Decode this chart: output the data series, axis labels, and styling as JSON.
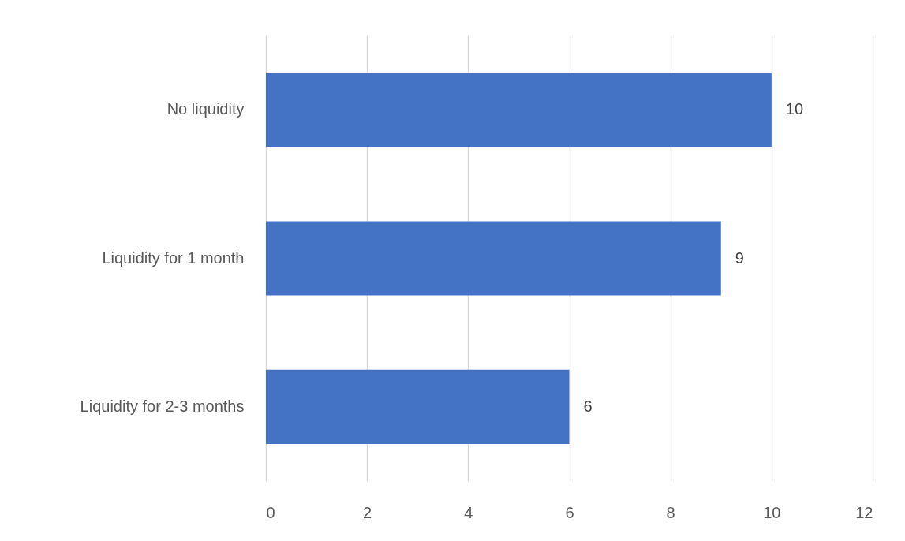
{
  "chart_data": {
    "type": "bar",
    "orientation": "horizontal",
    "categories": [
      "No liquidity",
      "Liquidity for 1 month",
      "Liquidity for 2-3 months"
    ],
    "values": [
      10,
      9,
      6
    ],
    "color": "#4472c4",
    "xlim": [
      0,
      12
    ],
    "xticks": [
      0,
      2,
      4,
      6,
      8,
      10,
      12
    ],
    "grid": "x",
    "data_labels": true
  }
}
